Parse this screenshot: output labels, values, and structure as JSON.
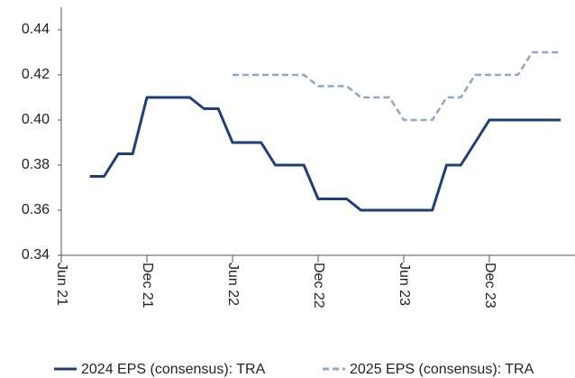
{
  "chart_data": {
    "type": "line",
    "x": [
      "2021-08",
      "2021-09",
      "2021-10",
      "2021-11",
      "2021-12",
      "2022-01",
      "2022-02",
      "2022-03",
      "2022-04",
      "2022-05",
      "2022-06",
      "2022-07",
      "2022-08",
      "2022-09",
      "2022-10",
      "2022-11",
      "2022-12",
      "2023-01",
      "2023-02",
      "2023-03",
      "2023-04",
      "2023-05",
      "2023-06",
      "2023-07",
      "2023-08",
      "2023-09",
      "2023-10",
      "2023-11",
      "2023-12",
      "2024-01",
      "2024-02",
      "2024-03",
      "2024-04",
      "2024-05"
    ],
    "series": [
      {
        "name": "2024 EPS (consensus): TRA",
        "color": "#1f3f7a",
        "dash": false,
        "values": [
          0.375,
          0.375,
          0.385,
          0.385,
          0.41,
          0.41,
          0.41,
          0.41,
          0.405,
          0.405,
          0.39,
          0.39,
          0.39,
          0.38,
          0.38,
          0.38,
          0.365,
          0.365,
          0.365,
          0.36,
          0.36,
          0.36,
          0.36,
          0.36,
          0.36,
          0.38,
          0.38,
          0.39,
          0.4,
          0.4,
          0.4,
          0.4,
          0.4,
          0.4
        ]
      },
      {
        "name": "2025 EPS (consensus): TRA",
        "color": "#8fa6c8",
        "dash": true,
        "values": [
          null,
          null,
          null,
          null,
          null,
          null,
          null,
          null,
          null,
          null,
          0.42,
          0.42,
          0.42,
          0.42,
          0.42,
          0.42,
          0.415,
          0.415,
          0.415,
          0.41,
          0.41,
          0.41,
          0.4,
          0.4,
          0.4,
          0.41,
          0.41,
          0.42,
          0.42,
          0.42,
          0.42,
          0.43,
          0.43,
          0.43
        ]
      }
    ],
    "xlim": [
      "2021-06",
      "2024-06"
    ],
    "xticks": [
      {
        "value": "2021-06",
        "label": "Jun 21"
      },
      {
        "value": "2021-12",
        "label": "Dec 21"
      },
      {
        "value": "2022-06",
        "label": "Jun 22"
      },
      {
        "value": "2022-12",
        "label": "Dec 22"
      },
      {
        "value": "2023-06",
        "label": "Jun 23"
      },
      {
        "value": "2023-12",
        "label": "Dec 23"
      }
    ],
    "ylim": [
      0.34,
      0.45
    ],
    "yticks": [
      0.34,
      0.36,
      0.38,
      {
        "value": 0.4,
        "label": "0.40"
      },
      0.42,
      0.44
    ],
    "legend": "bottom"
  }
}
